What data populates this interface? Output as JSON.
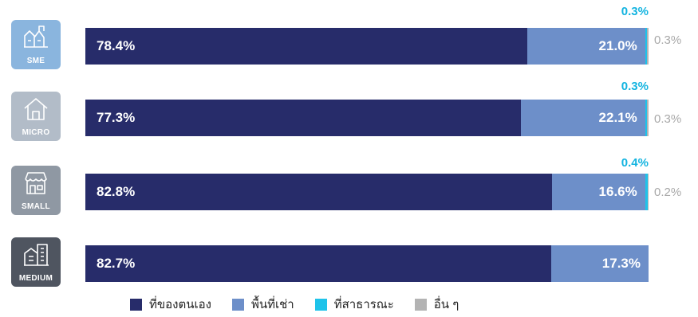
{
  "header": {
    "clipped_title": ""
  },
  "colors": {
    "owned": "#272c6a",
    "rented": "#6d8fc9",
    "public": "#1ec3ea",
    "other": "#b3b3b3",
    "public_text": "#14b4e0",
    "other_text": "#a8a8a8"
  },
  "legend": [
    {
      "label": "ที่ของตนเอง",
      "color_key": "owned"
    },
    {
      "label": "พื้นที่เช่า",
      "color_key": "rented"
    },
    {
      "label": "ที่สาธารณะ",
      "color_key": "public"
    },
    {
      "label": "อื่น ๆ",
      "color_key": "other"
    }
  ],
  "rows": [
    {
      "icon": "sme-people-icon",
      "icon_label": "SME",
      "icon_color": "#8ab5de",
      "owned_text": "78.4%",
      "rented_text": "21.0%",
      "public_text": "0.3%",
      "other_text": "0.3%"
    },
    {
      "icon": "house-icon",
      "icon_label": "MICRO",
      "icon_color": "#b2bcc8",
      "owned_text": "77.3%",
      "rented_text": "22.1%",
      "public_text": "0.3%",
      "other_text": "0.3%"
    },
    {
      "icon": "shop-icon",
      "icon_label": "SMALL",
      "icon_color": "#8f98a3",
      "owned_text": "82.8%",
      "rented_text": "16.6%",
      "public_text": "0.4%",
      "other_text": "0.2%"
    },
    {
      "icon": "building-icon",
      "icon_label": "MEDIUM",
      "icon_color": "#4f5560",
      "owned_text": "82.7%",
      "rented_text": "17.3%",
      "public_text": "",
      "other_text": ""
    }
  ],
  "chart_data": {
    "type": "bar",
    "orientation": "horizontal",
    "stacked": "100%",
    "categories": [
      "SME",
      "MICRO",
      "SMALL",
      "MEDIUM"
    ],
    "series": [
      {
        "name": "ที่ของตนเอง",
        "values": [
          78.4,
          77.3,
          82.8,
          82.7
        ]
      },
      {
        "name": "พื้นที่เช่า",
        "values": [
          21.0,
          22.1,
          16.6,
          17.3
        ]
      },
      {
        "name": "ที่สาธารณะ",
        "values": [
          0.3,
          0.3,
          0.4,
          0
        ]
      },
      {
        "name": "อื่น ๆ",
        "values": [
          0.3,
          0.3,
          0.2,
          0
        ]
      }
    ],
    "unit": "%",
    "xlim": [
      0,
      100
    ],
    "legend_position": "bottom"
  }
}
